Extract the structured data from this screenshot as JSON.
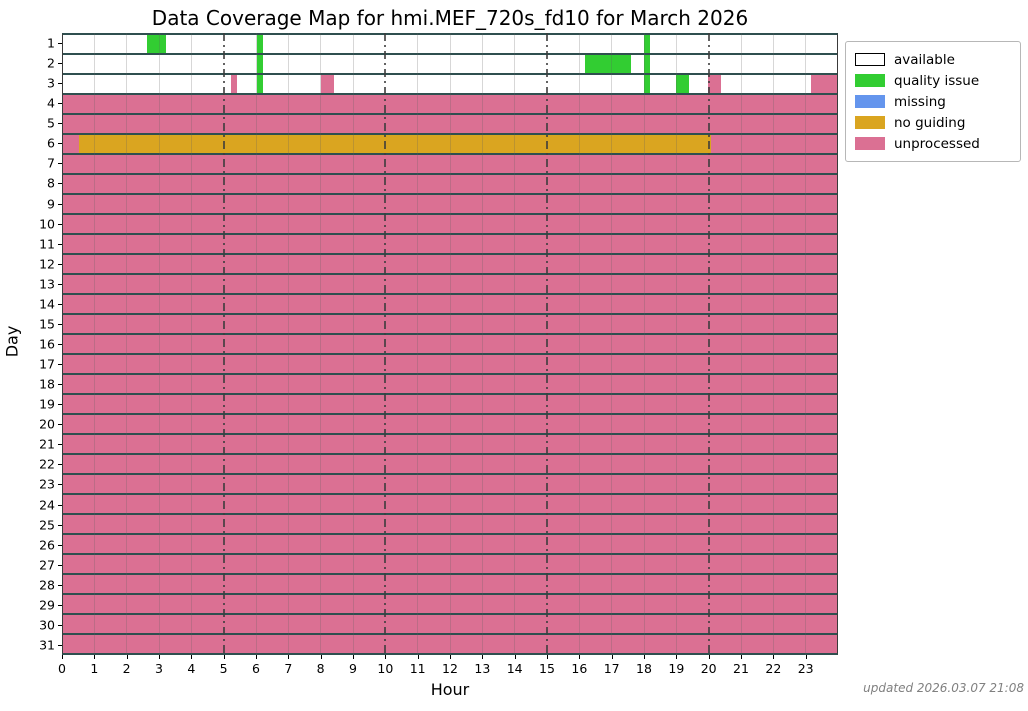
{
  "title": "Data Coverage Map for hmi.MEF_720s_fd10 for March 2026",
  "xlabel": "Hour",
  "ylabel": "Day",
  "footer": "updated 2026.03.07 21:08",
  "colors": {
    "available": "#ffffff",
    "quality issue": "#32cd32",
    "missing": "#6495ed",
    "no guiding": "#daa520",
    "unprocessed": "#db7093",
    "row_separator": "#2f4f4f"
  },
  "legend": [
    {
      "label": "available",
      "color": "#ffffff",
      "border": "#000000"
    },
    {
      "label": "quality issue",
      "color": "#32cd32",
      "border": "#32cd32"
    },
    {
      "label": "missing",
      "color": "#6495ed",
      "border": "#6495ed"
    },
    {
      "label": "no guiding",
      "color": "#daa520",
      "border": "#daa520"
    },
    {
      "label": "unprocessed",
      "color": "#db7093",
      "border": "#db7093"
    }
  ],
  "chart_data": {
    "type": "heatmap",
    "title": "Data Coverage Map for hmi.MEF_720s_fd10 for March 2026",
    "xlabel": "Hour",
    "ylabel": "Day",
    "xlim": [
      0,
      24
    ],
    "x_ticks": [
      0,
      1,
      2,
      3,
      4,
      5,
      6,
      7,
      8,
      9,
      10,
      11,
      12,
      13,
      14,
      15,
      16,
      17,
      18,
      19,
      20,
      21,
      22,
      23
    ],
    "y_ticks": [
      1,
      2,
      3,
      4,
      5,
      6,
      7,
      8,
      9,
      10,
      11,
      12,
      13,
      14,
      15,
      16,
      17,
      18,
      19,
      20,
      21,
      22,
      23,
      24,
      25,
      26,
      27,
      28,
      29,
      30,
      31
    ],
    "grid": {
      "hour_lines_every": 1,
      "dashdot_hours": [
        5,
        10,
        15,
        20
      ]
    },
    "legend_position": "upper right, outside axes",
    "days": [
      {
        "day": 1,
        "segments": [
          [
            0,
            2.6,
            "available"
          ],
          [
            2.6,
            3.2,
            "quality issue"
          ],
          [
            3.2,
            6.0,
            "available"
          ],
          [
            6.0,
            6.2,
            "quality issue"
          ],
          [
            6.2,
            18.0,
            "available"
          ],
          [
            18.0,
            18.2,
            "quality issue"
          ],
          [
            18.2,
            24,
            "available"
          ]
        ]
      },
      {
        "day": 2,
        "segments": [
          [
            0,
            6.0,
            "available"
          ],
          [
            6.0,
            6.2,
            "quality issue"
          ],
          [
            6.2,
            16.2,
            "available"
          ],
          [
            16.2,
            17.6,
            "quality issue"
          ],
          [
            17.6,
            18.0,
            "available"
          ],
          [
            18.0,
            18.2,
            "quality issue"
          ],
          [
            18.2,
            24,
            "available"
          ]
        ]
      },
      {
        "day": 3,
        "segments": [
          [
            0,
            5.2,
            "available"
          ],
          [
            5.2,
            5.4,
            "unprocessed"
          ],
          [
            5.4,
            6.0,
            "available"
          ],
          [
            6.0,
            6.2,
            "quality issue"
          ],
          [
            6.2,
            8.0,
            "available"
          ],
          [
            8.0,
            8.4,
            "unprocessed"
          ],
          [
            8.4,
            18.0,
            "available"
          ],
          [
            18.0,
            18.2,
            "quality issue"
          ],
          [
            18.2,
            19.0,
            "available"
          ],
          [
            19.0,
            19.4,
            "quality issue"
          ],
          [
            19.4,
            20.0,
            "available"
          ],
          [
            20.0,
            20.4,
            "unprocessed"
          ],
          [
            20.4,
            23.2,
            "available"
          ],
          [
            23.2,
            24,
            "unprocessed"
          ]
        ]
      },
      {
        "day": 4,
        "segments": [
          [
            0,
            24,
            "unprocessed"
          ]
        ]
      },
      {
        "day": 5,
        "segments": [
          [
            0,
            24,
            "unprocessed"
          ]
        ]
      },
      {
        "day": 6,
        "segments": [
          [
            0,
            0.5,
            "unprocessed"
          ],
          [
            0.5,
            20.1,
            "no guiding"
          ],
          [
            20.1,
            24,
            "unprocessed"
          ]
        ]
      },
      {
        "day": 7,
        "segments": [
          [
            0,
            24,
            "unprocessed"
          ]
        ]
      },
      {
        "day": 8,
        "segments": [
          [
            0,
            24,
            "unprocessed"
          ]
        ]
      },
      {
        "day": 9,
        "segments": [
          [
            0,
            24,
            "unprocessed"
          ]
        ]
      },
      {
        "day": 10,
        "segments": [
          [
            0,
            24,
            "unprocessed"
          ]
        ]
      },
      {
        "day": 11,
        "segments": [
          [
            0,
            24,
            "unprocessed"
          ]
        ]
      },
      {
        "day": 12,
        "segments": [
          [
            0,
            24,
            "unprocessed"
          ]
        ]
      },
      {
        "day": 13,
        "segments": [
          [
            0,
            24,
            "unprocessed"
          ]
        ]
      },
      {
        "day": 14,
        "segments": [
          [
            0,
            24,
            "unprocessed"
          ]
        ]
      },
      {
        "day": 15,
        "segments": [
          [
            0,
            24,
            "unprocessed"
          ]
        ]
      },
      {
        "day": 16,
        "segments": [
          [
            0,
            24,
            "unprocessed"
          ]
        ]
      },
      {
        "day": 17,
        "segments": [
          [
            0,
            24,
            "unprocessed"
          ]
        ]
      },
      {
        "day": 18,
        "segments": [
          [
            0,
            24,
            "unprocessed"
          ]
        ]
      },
      {
        "day": 19,
        "segments": [
          [
            0,
            24,
            "unprocessed"
          ]
        ]
      },
      {
        "day": 20,
        "segments": [
          [
            0,
            24,
            "unprocessed"
          ]
        ]
      },
      {
        "day": 21,
        "segments": [
          [
            0,
            24,
            "unprocessed"
          ]
        ]
      },
      {
        "day": 22,
        "segments": [
          [
            0,
            24,
            "unprocessed"
          ]
        ]
      },
      {
        "day": 23,
        "segments": [
          [
            0,
            24,
            "unprocessed"
          ]
        ]
      },
      {
        "day": 24,
        "segments": [
          [
            0,
            24,
            "unprocessed"
          ]
        ]
      },
      {
        "day": 25,
        "segments": [
          [
            0,
            24,
            "unprocessed"
          ]
        ]
      },
      {
        "day": 26,
        "segments": [
          [
            0,
            24,
            "unprocessed"
          ]
        ]
      },
      {
        "day": 27,
        "segments": [
          [
            0,
            24,
            "unprocessed"
          ]
        ]
      },
      {
        "day": 28,
        "segments": [
          [
            0,
            24,
            "unprocessed"
          ]
        ]
      },
      {
        "day": 29,
        "segments": [
          [
            0,
            24,
            "unprocessed"
          ]
        ]
      },
      {
        "day": 30,
        "segments": [
          [
            0,
            24,
            "unprocessed"
          ]
        ]
      },
      {
        "day": 31,
        "segments": [
          [
            0,
            24,
            "unprocessed"
          ]
        ]
      }
    ]
  }
}
